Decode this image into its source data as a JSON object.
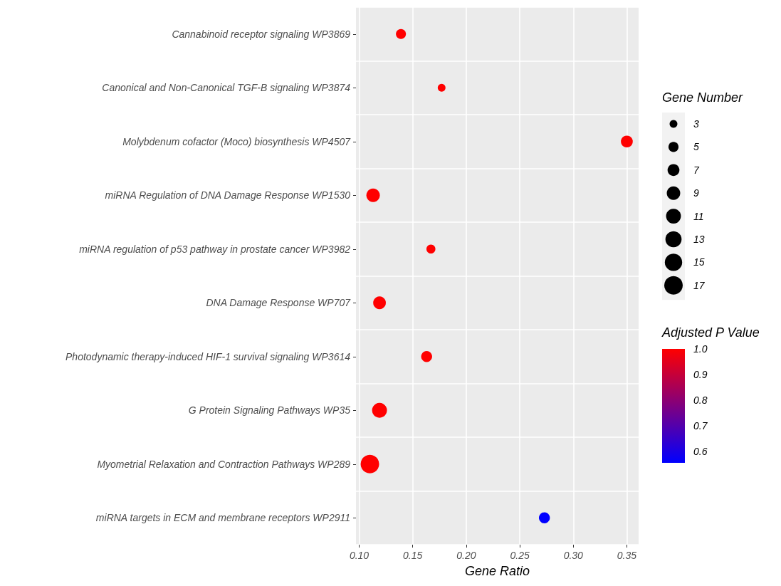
{
  "chart_data": {
    "type": "bubble",
    "xlabel": "Gene Ratio",
    "legend_title": "Gene Number",
    "clabel": "Adjusted P Value",
    "categories": [
      "Cannabinoid receptor signaling WP3869",
      "Canonical and Non-Canonical TGF-B signaling WP3874",
      "Molybdenum cofactor (Moco) biosynthesis WP4507",
      "miRNA Regulation of DNA Damage Response WP1530",
      "miRNA regulation of p53 pathway in prostate cancer WP3982",
      "DNA Damage Response WP707",
      "Photodynamic therapy-induced HIF-1 survival signaling WP3614",
      "G Protein Signaling Pathways WP35",
      "Myometrial Relaxation and Contraction Pathways WP289",
      "miRNA targets in ECM and membrane receptors WP2911"
    ],
    "values": [
      0.139,
      0.177,
      0.35,
      0.113,
      0.167,
      0.119,
      0.163,
      0.119,
      0.11,
      0.273
    ],
    "sizes": [
      5,
      3,
      7,
      9,
      4,
      8,
      6,
      11,
      17,
      6
    ],
    "cvalues": [
      1.0,
      1.0,
      1.0,
      1.0,
      1.0,
      1.0,
      1.0,
      1.0,
      1.0,
      0.555
    ],
    "size_legend": [
      3,
      5,
      7,
      9,
      11,
      13,
      15,
      17
    ],
    "clim": [
      0.555,
      1.0
    ],
    "cticks": [
      0.6,
      0.7,
      0.8,
      0.9,
      {
        "value": 1.0,
        "label": "1.0"
      }
    ],
    "xlim": [
      0.097,
      0.361
    ],
    "xticks": [
      {
        "value": 0.1,
        "label": "0.10"
      },
      {
        "value": 0.15,
        "label": "0.15"
      },
      {
        "value": 0.2,
        "label": "0.20"
      },
      {
        "value": 0.25,
        "label": "0.25"
      },
      {
        "value": 0.3,
        "label": "0.30"
      },
      {
        "value": 0.35,
        "label": "0.35"
      }
    ],
    "orientation": "horizontal",
    "grid": true,
    "marker": "circle"
  }
}
